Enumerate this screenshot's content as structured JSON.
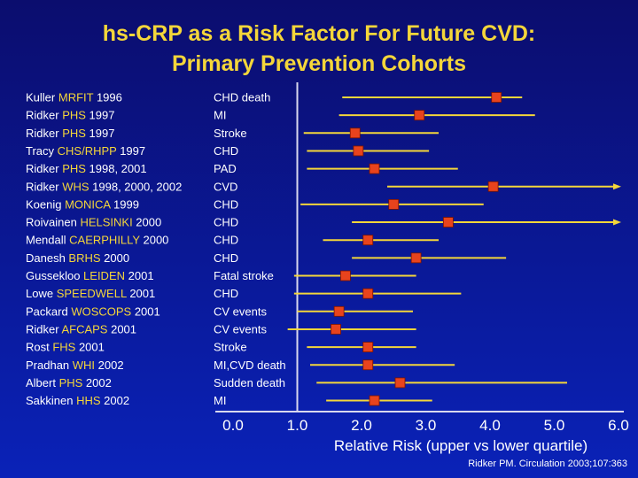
{
  "title_line1": "hs-CRP as a Risk Factor For Future CVD:",
  "title_line2": "Primary Prevention Cohorts",
  "citation": "Ridker PM. Circulation 2003;107:363",
  "colors": {
    "title": "#f4d63a",
    "highlight": "#f4d63a",
    "text": "#ffffff",
    "marker": "#e8431d",
    "line": "#f4d63a"
  },
  "chart_data": {
    "type": "forest",
    "xlabel": "Relative Risk (upper vs lower quartile)",
    "xlim": [
      0.0,
      6.0
    ],
    "tick_labels": [
      "0.0",
      "1.0",
      "2.0",
      "3.0",
      "4.0",
      "5.0",
      "6.0"
    ],
    "tick_values": [
      0,
      1,
      2,
      3,
      4,
      5,
      6
    ],
    "reference_line": 1.0,
    "studies": [
      {
        "author": "Kuller",
        "cohort": "MRFIT",
        "year": "1996",
        "outcome": "CHD death",
        "rr": 4.1,
        "lower": 1.7,
        "upper": 4.5,
        "arrow": false
      },
      {
        "author": "Ridker",
        "cohort": "PHS",
        "year": "1997",
        "outcome": "MI",
        "rr": 2.9,
        "lower": 1.65,
        "upper": 4.7,
        "arrow": false
      },
      {
        "author": "Ridker",
        "cohort": "PHS",
        "year": "1997",
        "outcome": "Stroke",
        "rr": 1.9,
        "lower": 1.1,
        "upper": 3.2,
        "arrow": false
      },
      {
        "author": "Tracy",
        "cohort": "CHS/RHPP",
        "year": "1997",
        "outcome": "CHD",
        "rr": 1.95,
        "lower": 1.15,
        "upper": 3.05,
        "arrow": false
      },
      {
        "author": "Ridker",
        "cohort": "PHS",
        "year": "1998, 2001",
        "outcome": "PAD",
        "rr": 2.2,
        "lower": 1.15,
        "upper": 3.5,
        "arrow": false
      },
      {
        "author": "Ridker",
        "cohort": "WHS",
        "year": "1998, 2000, 2002",
        "outcome": "CVD",
        "rr": 4.05,
        "lower": 2.4,
        "upper": 6.0,
        "arrow": true
      },
      {
        "author": "Koenig",
        "cohort": "MONICA",
        "year": "1999",
        "outcome": "CHD",
        "rr": 2.5,
        "lower": 1.05,
        "upper": 3.9,
        "arrow": false
      },
      {
        "author": "Roivainen",
        "cohort": "HELSINKI",
        "year": "2000",
        "outcome": "CHD",
        "rr": 3.35,
        "lower": 1.85,
        "upper": 6.0,
        "arrow": true
      },
      {
        "author": "Mendall",
        "cohort": "CAERPHILLY",
        "year": "2000",
        "outcome": "CHD",
        "rr": 2.1,
        "lower": 1.4,
        "upper": 3.2,
        "arrow": false
      },
      {
        "author": "Danesh",
        "cohort": "BRHS",
        "year": "2000",
        "outcome": "CHD",
        "rr": 2.85,
        "lower": 1.85,
        "upper": 4.25,
        "arrow": false
      },
      {
        "author": "Gussekloo",
        "cohort": "LEIDEN",
        "year": "2001",
        "outcome": "Fatal stroke",
        "rr": 1.75,
        "lower": 0.95,
        "upper": 2.85,
        "arrow": false
      },
      {
        "author": "Lowe",
        "cohort": "SPEEDWELL",
        "year": "2001",
        "outcome": "CHD",
        "rr": 2.1,
        "lower": 0.95,
        "upper": 3.55,
        "arrow": false
      },
      {
        "author": "Packard",
        "cohort": "WOSCOPS",
        "year": "2001",
        "outcome": "CV events",
        "rr": 1.65,
        "lower": 1.0,
        "upper": 2.8,
        "arrow": false
      },
      {
        "author": "Ridker",
        "cohort": "AFCAPS",
        "year": "2001",
        "outcome": "CV events",
        "rr": 1.6,
        "lower": 0.85,
        "upper": 2.85,
        "arrow": false
      },
      {
        "author": "Rost",
        "cohort": "FHS",
        "year": "2001",
        "outcome": "Stroke",
        "rr": 2.1,
        "lower": 1.15,
        "upper": 2.85,
        "arrow": false
      },
      {
        "author": "Pradhan",
        "cohort": "WHI",
        "year": "2002",
        "outcome": "MI,CVD death",
        "rr": 2.1,
        "lower": 1.2,
        "upper": 3.45,
        "arrow": false
      },
      {
        "author": "Albert",
        "cohort": "PHS",
        "year": "2002",
        "outcome": "Sudden death",
        "rr": 2.6,
        "lower": 1.3,
        "upper": 5.2,
        "arrow": false
      },
      {
        "author": "Sakkinen",
        "cohort": "HHS",
        "year": "2002",
        "outcome": "MI",
        "rr": 2.2,
        "lower": 1.45,
        "upper": 3.1,
        "arrow": false
      }
    ]
  }
}
